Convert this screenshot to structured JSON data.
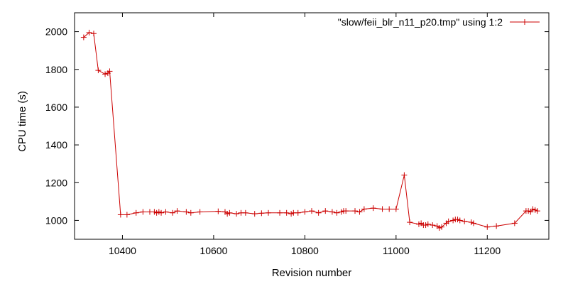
{
  "chart_data": {
    "type": "line",
    "xlabel": "Revision number",
    "ylabel": "CPU time (s)",
    "xlim": [
      10295,
      11335
    ],
    "ylim": [
      900,
      2100
    ],
    "x_ticks": [
      10400,
      10600,
      10800,
      11000,
      11200
    ],
    "y_ticks": [
      1000,
      1200,
      1400,
      1600,
      1800,
      2000
    ],
    "grid": false,
    "legend_position": "top-right",
    "series": [
      {
        "name": "\"slow/feii_blr_n11_p20.tmp\" using 1:2",
        "color": "#cc0000",
        "marker": "plus",
        "x": [
          10315,
          10327,
          10337,
          10347,
          10362,
          10368,
          10372,
          10396,
          10410,
          10430,
          10445,
          10460,
          10470,
          10475,
          10480,
          10485,
          10495,
          10510,
          10520,
          10540,
          10550,
          10570,
          10610,
          10625,
          10630,
          10635,
          10650,
          10660,
          10670,
          10690,
          10705,
          10720,
          10745,
          10760,
          10770,
          10775,
          10785,
          10800,
          10815,
          10830,
          10845,
          10860,
          10870,
          10880,
          10885,
          10890,
          10910,
          10920,
          10930,
          10950,
          10970,
          10985,
          11000,
          11018,
          11030,
          11050,
          11055,
          11060,
          11065,
          11070,
          11080,
          11090,
          11095,
          11100,
          11110,
          11115,
          11125,
          11130,
          11135,
          11140,
          11150,
          11165,
          11170,
          11200,
          11220,
          11260,
          11285,
          11290,
          11295,
          11300,
          11305,
          11310
        ],
        "values": [
          1970,
          1995,
          1990,
          1795,
          1775,
          1780,
          1790,
          1030,
          1030,
          1040,
          1045,
          1045,
          1045,
          1040,
          1045,
          1040,
          1045,
          1040,
          1050,
          1045,
          1040,
          1045,
          1048,
          1045,
          1035,
          1040,
          1035,
          1040,
          1040,
          1035,
          1038,
          1040,
          1040,
          1040,
          1035,
          1040,
          1040,
          1045,
          1050,
          1040,
          1050,
          1045,
          1040,
          1045,
          1050,
          1050,
          1050,
          1045,
          1060,
          1065,
          1060,
          1060,
          1060,
          1240,
          990,
          980,
          985,
          975,
          975,
          980,
          975,
          970,
          960,
          965,
          985,
          995,
          1000,
          1005,
          1005,
          1000,
          995,
          990,
          985,
          965,
          970,
          985,
          1050,
          1050,
          1045,
          1060,
          1055,
          1050
        ]
      }
    ]
  }
}
